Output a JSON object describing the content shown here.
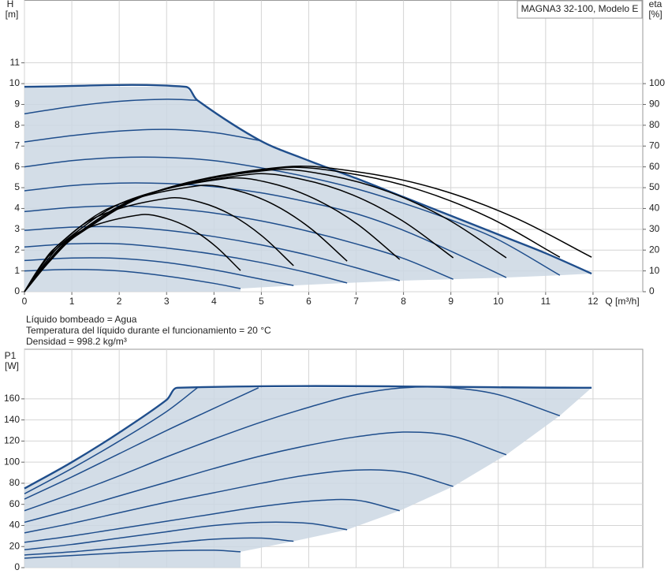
{
  "chart_data": [
    {
      "type": "line",
      "title": "MAGNA3 32-100, Modelo E",
      "y_label": "H",
      "y_unit": "[m]",
      "y2_label": "eta",
      "y2_unit": "[%]",
      "x_label": "Q [m³/h]",
      "xlim": [
        0,
        13.05
      ],
      "xticks": [
        0,
        1,
        2,
        3,
        4,
        5,
        6,
        7,
        8,
        9,
        10,
        11,
        12
      ],
      "ylim": [
        0,
        14
      ],
      "yticks": [
        0,
        1,
        2,
        3,
        4,
        5,
        6,
        7,
        8,
        9,
        10,
        11
      ],
      "y2lim": [
        0,
        140
      ],
      "y2ticks": [
        0,
        10,
        20,
        30,
        40,
        50,
        60,
        70,
        80,
        90,
        100
      ],
      "grid": true,
      "fill": "#cbd7e3",
      "series": [
        {
          "color": "#1f4e8c",
          "x": [
            0,
            3.4,
            3.65,
            4.98,
            6,
            7,
            8,
            9,
            10,
            11,
            11.97
          ],
          "values": [
            9.85,
            9.85,
            9.2,
            7.26,
            6.3,
            5.45,
            4.55,
            3.65,
            2.75,
            1.85,
            0.87
          ]
        },
        {
          "color": "#1f4e8c",
          "x": [
            0,
            1,
            2,
            3,
            4,
            4.56
          ],
          "values": [
            1.0,
            1.07,
            1.0,
            0.75,
            0.4,
            0.15
          ]
        },
        {
          "color": "#1f4e8c",
          "x": [
            0,
            1,
            2,
            3,
            4,
            5,
            5.68
          ],
          "values": [
            1.5,
            1.62,
            1.6,
            1.4,
            1.05,
            0.6,
            0.3
          ]
        },
        {
          "color": "#1f4e8c",
          "x": [
            0,
            1,
            2,
            3,
            4,
            5,
            6,
            6.81
          ],
          "values": [
            2.15,
            2.3,
            2.3,
            2.1,
            1.8,
            1.4,
            0.9,
            0.42
          ]
        },
        {
          "color": "#1f4e8c",
          "x": [
            0,
            1,
            2,
            3,
            4,
            5,
            6,
            7,
            7.92
          ],
          "values": [
            2.95,
            3.1,
            3.12,
            2.95,
            2.65,
            2.25,
            1.75,
            1.15,
            0.53
          ]
        },
        {
          "color": "#1f4e8c",
          "x": [
            0,
            1,
            2,
            3,
            4,
            5,
            6,
            7,
            8,
            9.05
          ],
          "values": [
            3.85,
            4.05,
            4.12,
            4.02,
            3.78,
            3.4,
            2.9,
            2.3,
            1.6,
            0.6
          ]
        },
        {
          "color": "#1f4e8c",
          "x": [
            0,
            1,
            2,
            3,
            4,
            5,
            6,
            7,
            8,
            9,
            10.17
          ],
          "values": [
            4.85,
            5.1,
            5.22,
            5.2,
            5.05,
            4.75,
            4.3,
            3.75,
            2.95,
            1.95,
            0.68
          ]
        },
        {
          "color": "#1f4e8c",
          "x": [
            0,
            1,
            2,
            3,
            4,
            5,
            6,
            7,
            8,
            9,
            10,
            11.3
          ],
          "values": [
            6.0,
            6.3,
            6.45,
            6.45,
            6.3,
            5.95,
            5.5,
            4.95,
            4.25,
            3.45,
            2.5,
            0.79
          ]
        },
        {
          "color": "#1f4e8c",
          "x": [
            0,
            1,
            2,
            3,
            4,
            4.98
          ],
          "values": [
            7.2,
            7.5,
            7.72,
            7.8,
            7.65,
            7.26
          ]
        },
        {
          "color": "#1f4e8c",
          "x": [
            0,
            1,
            2,
            3,
            3.65
          ],
          "values": [
            8.55,
            8.9,
            9.15,
            9.25,
            9.2
          ]
        },
        {
          "color": "#000000",
          "axis": "y2",
          "x": [
            0,
            0.25,
            0.49,
            1.23,
            2.45,
            2.98,
            3.51,
            4.03,
            4.56
          ],
          "values": [
            0,
            9.3,
            16.7,
            29.6,
            37,
            35.3,
            30.3,
            21.9,
            10.2
          ]
        },
        {
          "color": "#000000",
          "axis": "y2",
          "x": [
            0,
            0.31,
            0.61,
            1.53,
            3.05,
            3.71,
            4.37,
            5.02,
            5.68
          ],
          "values": [
            0,
            11.3,
            20.3,
            36,
            45,
            43,
            36.9,
            26.7,
            12.5
          ]
        },
        {
          "color": "#000000",
          "axis": "y2",
          "x": [
            0,
            0.37,
            0.74,
            1.85,
            3.7,
            4.48,
            5.26,
            6.03,
            6.81
          ],
          "values": [
            0,
            12.8,
            23,
            40.8,
            51,
            48.7,
            41.9,
            30.6,
            14.7
          ]
        },
        {
          "color": "#000000",
          "axis": "y2",
          "x": [
            0,
            0.43,
            0.86,
            2.15,
            4.3,
            5.21,
            6.11,
            7.02,
            7.92
          ],
          "values": [
            0,
            13.6,
            24.5,
            43.6,
            54.5,
            52.1,
            44.8,
            32.6,
            15.5
          ]
        },
        {
          "color": "#000000",
          "axis": "y2",
          "x": [
            0,
            0.48,
            0.96,
            2.4,
            4.8,
            5.86,
            6.93,
            7.99,
            9.05
          ],
          "values": [
            0,
            14.1,
            25.4,
            45.2,
            56.5,
            54,
            46.5,
            33.9,
            16.3
          ]
        },
        {
          "color": "#000000",
          "axis": "y2",
          "x": [
            0,
            0.52,
            1.04,
            2.6,
            5.2,
            6.44,
            7.69,
            8.93,
            10.17
          ],
          "values": [
            0,
            14.6,
            26.3,
            46.8,
            58.5,
            55.9,
            48,
            34.8,
            16.3
          ]
        },
        {
          "color": "#000000",
          "axis": "y2",
          "x": [
            0,
            0.54,
            1.08,
            2.7,
            5.4,
            6.88,
            8.35,
            9.83,
            11.3
          ],
          "values": [
            0,
            14.9,
            26.8,
            47.6,
            59.5,
            56.8,
            48.8,
            35.4,
            16.6
          ]
        },
        {
          "color": "#000000",
          "axis": "y2",
          "x": [
            0,
            0.55,
            1.1,
            2.75,
            5.5,
            7.12,
            8.74,
            10.35,
            11.97
          ],
          "values": [
            0,
            15,
            27,
            48,
            60,
            57.3,
            49.2,
            35.6,
            16.6
          ]
        }
      ]
    },
    {
      "type": "line",
      "y_label": "P1",
      "y_unit": "[W]",
      "xlim": [
        0,
        13.05
      ],
      "ylim": [
        0,
        207
      ],
      "yticks": [
        0,
        20,
        40,
        60,
        80,
        100,
        120,
        140,
        160
      ],
      "grid": true,
      "fill": "#cbd7e3",
      "series": [
        {
          "color": "#1f4e8c",
          "x": [
            0,
            1,
            2,
            3,
            3.23,
            11.97
          ],
          "values": [
            75,
            100,
            128,
            159,
            170.5,
            170.5
          ]
        },
        {
          "color": "#1f4e8c",
          "x": [
            0,
            1,
            2,
            3,
            4,
            4.56
          ],
          "values": [
            9,
            11.5,
            14,
            16,
            16.5,
            15
          ]
        },
        {
          "color": "#1f4e8c",
          "x": [
            0,
            1,
            2,
            3,
            4,
            5,
            5.68
          ],
          "values": [
            12,
            15,
            19,
            23,
            27,
            28,
            25
          ]
        },
        {
          "color": "#1f4e8c",
          "x": [
            0,
            1,
            2,
            3,
            4,
            5,
            6,
            6.81
          ],
          "values": [
            17,
            22,
            28,
            34,
            40,
            43,
            42,
            36
          ]
        },
        {
          "color": "#1f4e8c",
          "x": [
            0,
            1,
            2,
            3,
            4,
            5,
            6,
            7,
            7.92
          ],
          "values": [
            24,
            30,
            37,
            44,
            51,
            58,
            63,
            64,
            54
          ]
        },
        {
          "color": "#1f4e8c",
          "x": [
            0,
            1,
            2,
            3,
            4,
            5,
            6,
            7,
            8,
            9.05
          ],
          "values": [
            33,
            42,
            52,
            62,
            71,
            80,
            88,
            92.5,
            90.5,
            77
          ]
        },
        {
          "color": "#1f4e8c",
          "x": [
            0,
            1,
            2,
            3,
            4,
            5,
            6,
            7,
            8,
            9,
            10.17
          ],
          "values": [
            43,
            55,
            68,
            81,
            94,
            106,
            116,
            124,
            128.5,
            125,
            107
          ]
        },
        {
          "color": "#1f4e8c",
          "x": [
            0,
            1,
            2,
            3,
            4,
            5,
            6,
            7,
            8,
            9,
            10,
            11.3
          ],
          "values": [
            54,
            70,
            87,
            105,
            122,
            138,
            152,
            164,
            170.5,
            170.5,
            164,
            144
          ]
        },
        {
          "color": "#1f4e8c",
          "x": [
            0,
            1,
            2,
            3,
            4,
            4.94
          ],
          "values": [
            65,
            86,
            108,
            130,
            151,
            170.5
          ]
        },
        {
          "color": "#1f4e8c",
          "x": [
            0,
            1,
            2,
            3,
            3.65
          ],
          "values": [
            70,
            94,
            120,
            148,
            170.5
          ]
        }
      ]
    }
  ],
  "notes": [
    "Líquido bombeado = Agua",
    "Temperatura del líquido durante el funcionamiento = 20 °C",
    "Densidad = 998.2 kg/m³"
  ]
}
